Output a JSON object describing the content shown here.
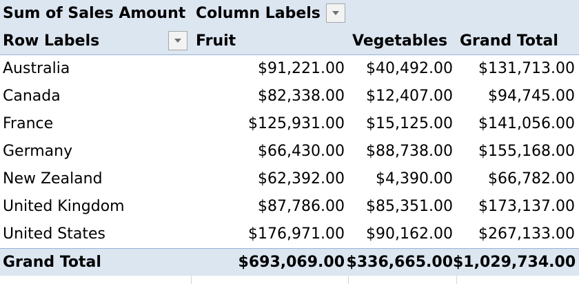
{
  "pivot": {
    "value_field": "Sum of Sales Amount",
    "column_labels": "Column Labels",
    "row_labels": "Row Labels",
    "columns": [
      "Fruit",
      "Vegetables",
      "Grand Total"
    ],
    "rows": [
      {
        "label": "Australia",
        "fruit": "$91,221.00",
        "vegetables": "$40,492.00",
        "total": "$131,713.00"
      },
      {
        "label": "Canada",
        "fruit": "$82,338.00",
        "vegetables": "$12,407.00",
        "total": "$94,745.00"
      },
      {
        "label": "France",
        "fruit": "$125,931.00",
        "vegetables": "$15,125.00",
        "total": "$141,056.00"
      },
      {
        "label": "Germany",
        "fruit": "$66,430.00",
        "vegetables": "$88,738.00",
        "total": "$155,168.00"
      },
      {
        "label": "New Zealand",
        "fruit": "$62,392.00",
        "vegetables": "$4,390.00",
        "total": "$66,782.00"
      },
      {
        "label": "United Kingdom",
        "fruit": "$87,786.00",
        "vegetables": "$85,351.00",
        "total": "$173,137.00"
      },
      {
        "label": "United States",
        "fruit": "$176,971.00",
        "vegetables": "$90,162.00",
        "total": "$267,133.00"
      }
    ],
    "grand_total": {
      "label": "Grand Total",
      "fruit": "$693,069.00",
      "vegetables": "$336,665.00",
      "total": "$1,029,734.00"
    }
  },
  "icons": {
    "filter_dropdown": "dropdown-arrow-icon"
  },
  "colors": {
    "header_fill": "#dce6f1",
    "border": "#95b3d7"
  }
}
